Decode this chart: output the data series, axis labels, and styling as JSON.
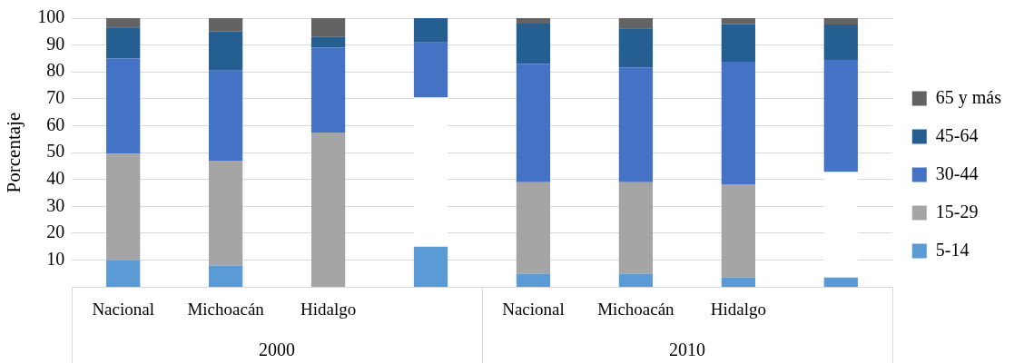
{
  "chart_data": {
    "type": "bar",
    "stacked": true,
    "ylabel": "Porcentaje",
    "categories": [
      "Nacional",
      "Michoacán",
      "Hidalgo",
      null,
      "Nacional",
      "Michoacán",
      "Hidalgo",
      null
    ],
    "series": [
      {
        "name": "5-14",
        "color": "#5b9bd5",
        "values": [
          10,
          8,
          0,
          15,
          5,
          5,
          3.5,
          3.5
        ]
      },
      {
        "name": "15-29",
        "color": "#a5a5a5",
        "colors": [
          "#a5a5a5",
          "#a5a5a5",
          "#a5a5a5",
          "#ffffff",
          "#a5a5a5",
          "#a5a5a5",
          "#a5a5a5",
          "#ffffff"
        ],
        "values": [
          39.5,
          39,
          57.5,
          55.5,
          34,
          34,
          34.7,
          39.3
        ]
      },
      {
        "name": "30-44",
        "color": "#4472c4",
        "values": [
          35.5,
          33.5,
          31.5,
          20.5,
          44,
          42.7,
          45.6,
          41.7
        ]
      },
      {
        "name": "45-64",
        "color": "#255e91",
        "values": [
          11.5,
          14.5,
          4,
          9,
          15,
          14.5,
          14,
          13.1
        ]
      },
      {
        "name": "65 y más",
        "color": "#636363",
        "values": [
          3.5,
          5,
          7,
          0,
          2,
          3.8,
          2.2,
          2.4
        ]
      }
    ],
    "ylim": [
      0,
      100
    ],
    "yticks": [
      10,
      20,
      30,
      40,
      50,
      60,
      70,
      80,
      90,
      100
    ],
    "grid": "y",
    "legend": "right",
    "annotations": [
      "2000",
      "2010"
    ]
  }
}
